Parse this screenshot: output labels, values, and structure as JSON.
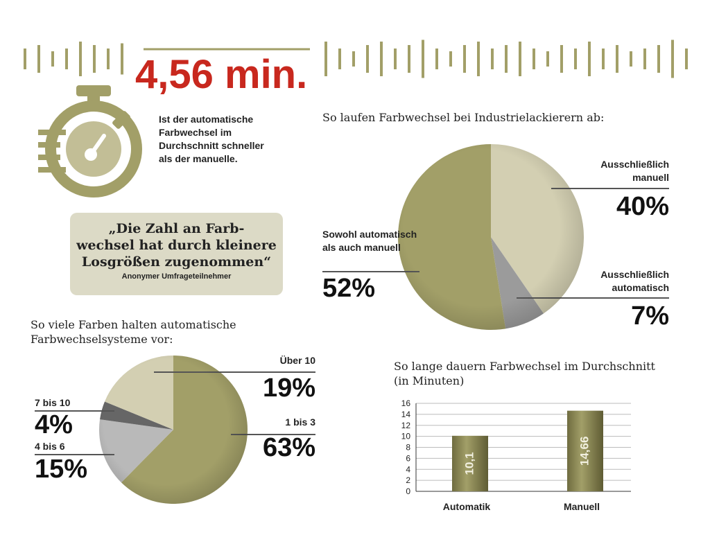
{
  "headline": "4,56 min.",
  "headline_text": "Ist der automatische Farbwechsel im Durchschnitt schneller als der manuelle.",
  "quote": {
    "lines": [
      "„Die Zahl an Farb-",
      "wechsel hat durch kleinere",
      "Losgrößen zugenommen“"
    ],
    "source": "Anonymer Umfrageteilnehmer"
  },
  "chart_data": [
    {
      "type": "pie",
      "title": "So laufen Farbwechsel bei Industrielackierern ab:",
      "categories": [
        "Ausschließlich manuell",
        "Ausschließlich automatisch",
        "Sowohl automatisch als auch manuell"
      ],
      "values": [
        40,
        7,
        52
      ],
      "value_labels": [
        "40%",
        "7%",
        "52%"
      ],
      "colors": [
        "#d3cfb2",
        "#9b9b9b",
        "#a29f68"
      ]
    },
    {
      "type": "pie",
      "title": "So viele Farben halten automatische Farbwechselsysteme vor:",
      "categories": [
        "1 bis 3",
        "4 bis 6",
        "7 bis 10",
        "Über 10"
      ],
      "values": [
        63,
        15,
        4,
        19
      ],
      "value_labels": [
        "63%",
        "15%",
        "4%",
        "19%"
      ],
      "colors": [
        "#a29f68",
        "#b9b9b9",
        "#666666",
        "#d3cfb2"
      ]
    },
    {
      "type": "bar",
      "title": "So lange dauern Farbwechsel im Durchschnitt (in Minuten)",
      "categories": [
        "Automatik",
        "Manuell"
      ],
      "values": [
        10.1,
        14.66
      ],
      "value_labels": [
        "10,1",
        "14,66"
      ],
      "color": "#a29f68",
      "ylim": [
        0,
        16
      ],
      "yticks": [
        0,
        2,
        4,
        6,
        8,
        10,
        12,
        14,
        16
      ],
      "grid": true
    }
  ]
}
